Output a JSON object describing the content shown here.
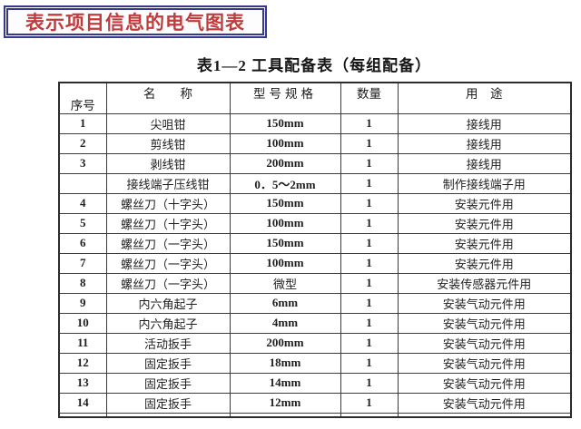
{
  "banner": {
    "text": "表示项目信息的电气图表",
    "text_color": "#c23a3c",
    "border_color": "#36388c"
  },
  "table_title": "表1—2 工具配备表（每组配备）",
  "table": {
    "headers": {
      "no": "序号",
      "name": "名　　称",
      "spec": "型号规格",
      "qty": "数量",
      "use": "用　途"
    },
    "rows": [
      {
        "no": "1",
        "name": "尖咀钳",
        "spec": "150mm",
        "qty": "1",
        "use": "接线用"
      },
      {
        "no": "2",
        "name": "剪线钳",
        "spec": "100mm",
        "qty": "1",
        "use": "接线用"
      },
      {
        "no": "3",
        "name": "剥线钳",
        "spec": "200mm",
        "qty": "1",
        "use": "接线用"
      },
      {
        "no": "",
        "name": "接线端子压线钳",
        "spec": "0．5～2mm",
        "qty": "1",
        "use": "制作接线端子用"
      },
      {
        "no": "4",
        "name": "螺丝刀（十字头）",
        "spec": "150mm",
        "qty": "1",
        "use": "安装元件用"
      },
      {
        "no": "5",
        "name": "螺丝刀（十字头）",
        "spec": "100mm",
        "qty": "1",
        "use": "安装元件用"
      },
      {
        "no": "6",
        "name": "螺丝刀（一字头）",
        "spec": "150mm",
        "qty": "1",
        "use": "安装元件用"
      },
      {
        "no": "7",
        "name": "螺丝刀（一字头）",
        "spec": "100mm",
        "qty": "1",
        "use": "安装元件用"
      },
      {
        "no": "8",
        "name": "螺丝刀（一字头）",
        "spec": "微型",
        "qty": "1",
        "use": "安装传感器元件用"
      },
      {
        "no": "9",
        "name": "内六角起子",
        "spec": "6mm",
        "qty": "1",
        "use": "安装气动元件用"
      },
      {
        "no": "10",
        "name": "内六角起子",
        "spec": "4mm",
        "qty": "1",
        "use": "安装气动元件用"
      },
      {
        "no": "11",
        "name": "活动扳手",
        "spec": "200mm",
        "qty": "1",
        "use": "安装气动元件用"
      },
      {
        "no": "12",
        "name": "固定扳手",
        "spec": "18mm",
        "qty": "1",
        "use": "安装气动元件用"
      },
      {
        "no": "13",
        "name": "固定扳手",
        "spec": "14mm",
        "qty": "1",
        "use": "安装气动元件用"
      },
      {
        "no": "14",
        "name": "固定扳手",
        "spec": "12mm",
        "qty": "1",
        "use": "安装气动元件用"
      }
    ]
  }
}
